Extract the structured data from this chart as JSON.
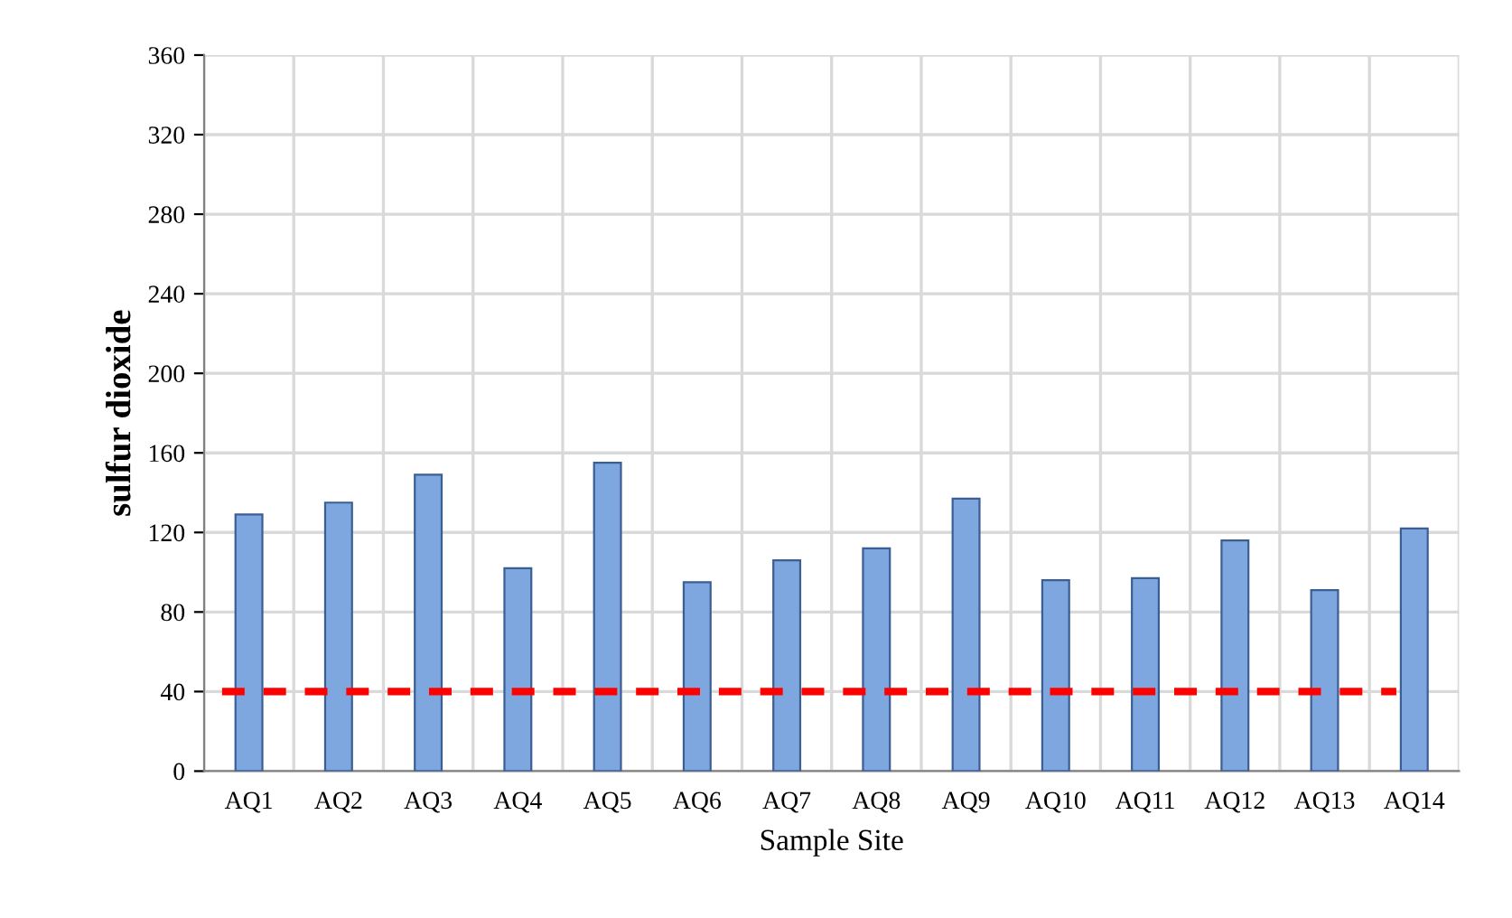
{
  "chart_data": {
    "type": "bar",
    "xlabel": "Sample Site",
    "ylabel": "sulfur dioxide",
    "categories": [
      "AQ1",
      "AQ2",
      "AQ3",
      "AQ4",
      "AQ5",
      "AQ6",
      "AQ7",
      "AQ8",
      "AQ9",
      "AQ10",
      "AQ11",
      "AQ12",
      "AQ13",
      "AQ14"
    ],
    "values": [
      129,
      135,
      149,
      102,
      155,
      95,
      106,
      112,
      137,
      96,
      97,
      116,
      91,
      122
    ],
    "color": "#7ea7df",
    "ylim": [
      0,
      360
    ],
    "yticks": [
      0,
      40,
      80,
      120,
      160,
      200,
      240,
      280,
      320,
      360
    ],
    "grid": true,
    "ref_lines": [
      {
        "axis": "y",
        "value": 40,
        "label": null,
        "color": "#ff0000",
        "line_style": "dashed"
      }
    ]
  }
}
